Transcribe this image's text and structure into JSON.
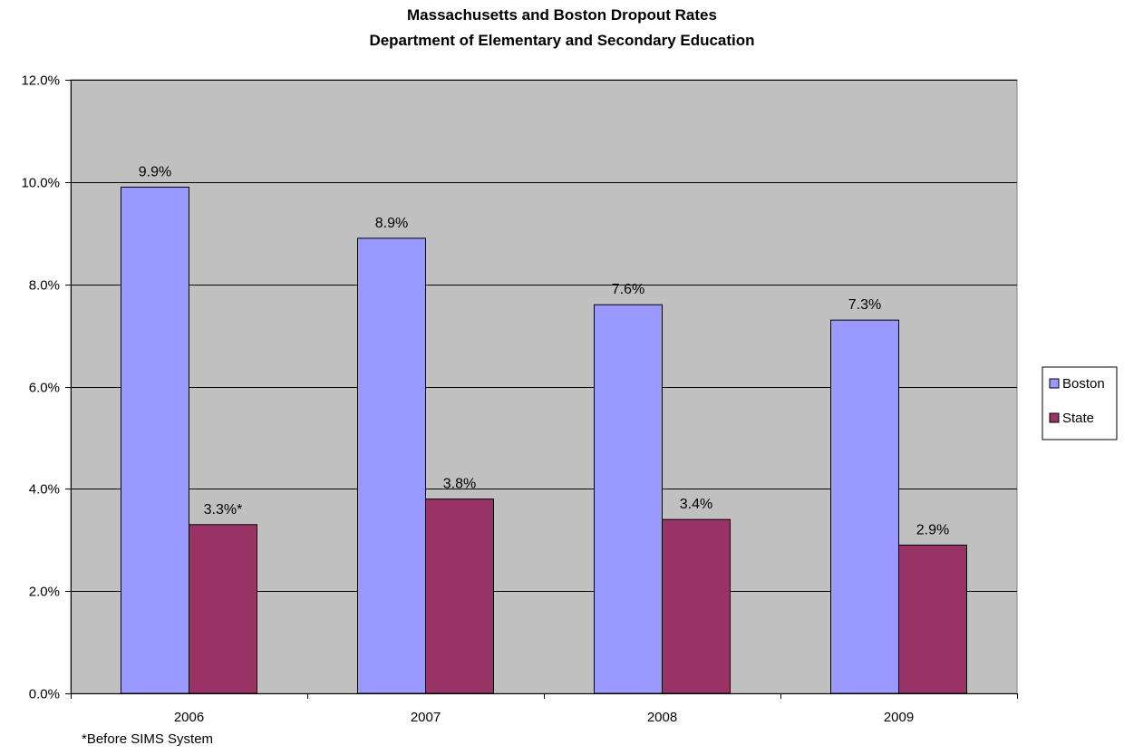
{
  "chart_data": {
    "type": "bar",
    "title": "Massachusetts and Boston Dropout Rates",
    "subtitle": "Department of Elementary and Secondary Education",
    "categories": [
      "2006",
      "2007",
      "2008",
      "2009"
    ],
    "series": [
      {
        "name": "Boston",
        "values": [
          9.9,
          8.9,
          7.6,
          7.3
        ],
        "labels": [
          "9.9%",
          "8.9%",
          "7.6%",
          "7.3%"
        ],
        "color": "#9999ff"
      },
      {
        "name": "State",
        "values": [
          3.3,
          3.8,
          3.4,
          2.9
        ],
        "labels": [
          "3.3%*",
          "3.8%",
          "3.4%",
          "2.9%"
        ],
        "color": "#993366"
      }
    ],
    "ylim": [
      0,
      12
    ],
    "yticks": [
      0,
      2,
      4,
      6,
      8,
      10,
      12
    ],
    "ytick_labels": [
      "0.0%",
      "2.0%",
      "4.0%",
      "6.0%",
      "8.0%",
      "10.0%",
      "12.0%"
    ],
    "xlabel": "",
    "ylabel": "",
    "grid": true,
    "plot_background": "#c0c0c0",
    "legend_position": "right",
    "footnote": "*Before SIMS System"
  }
}
